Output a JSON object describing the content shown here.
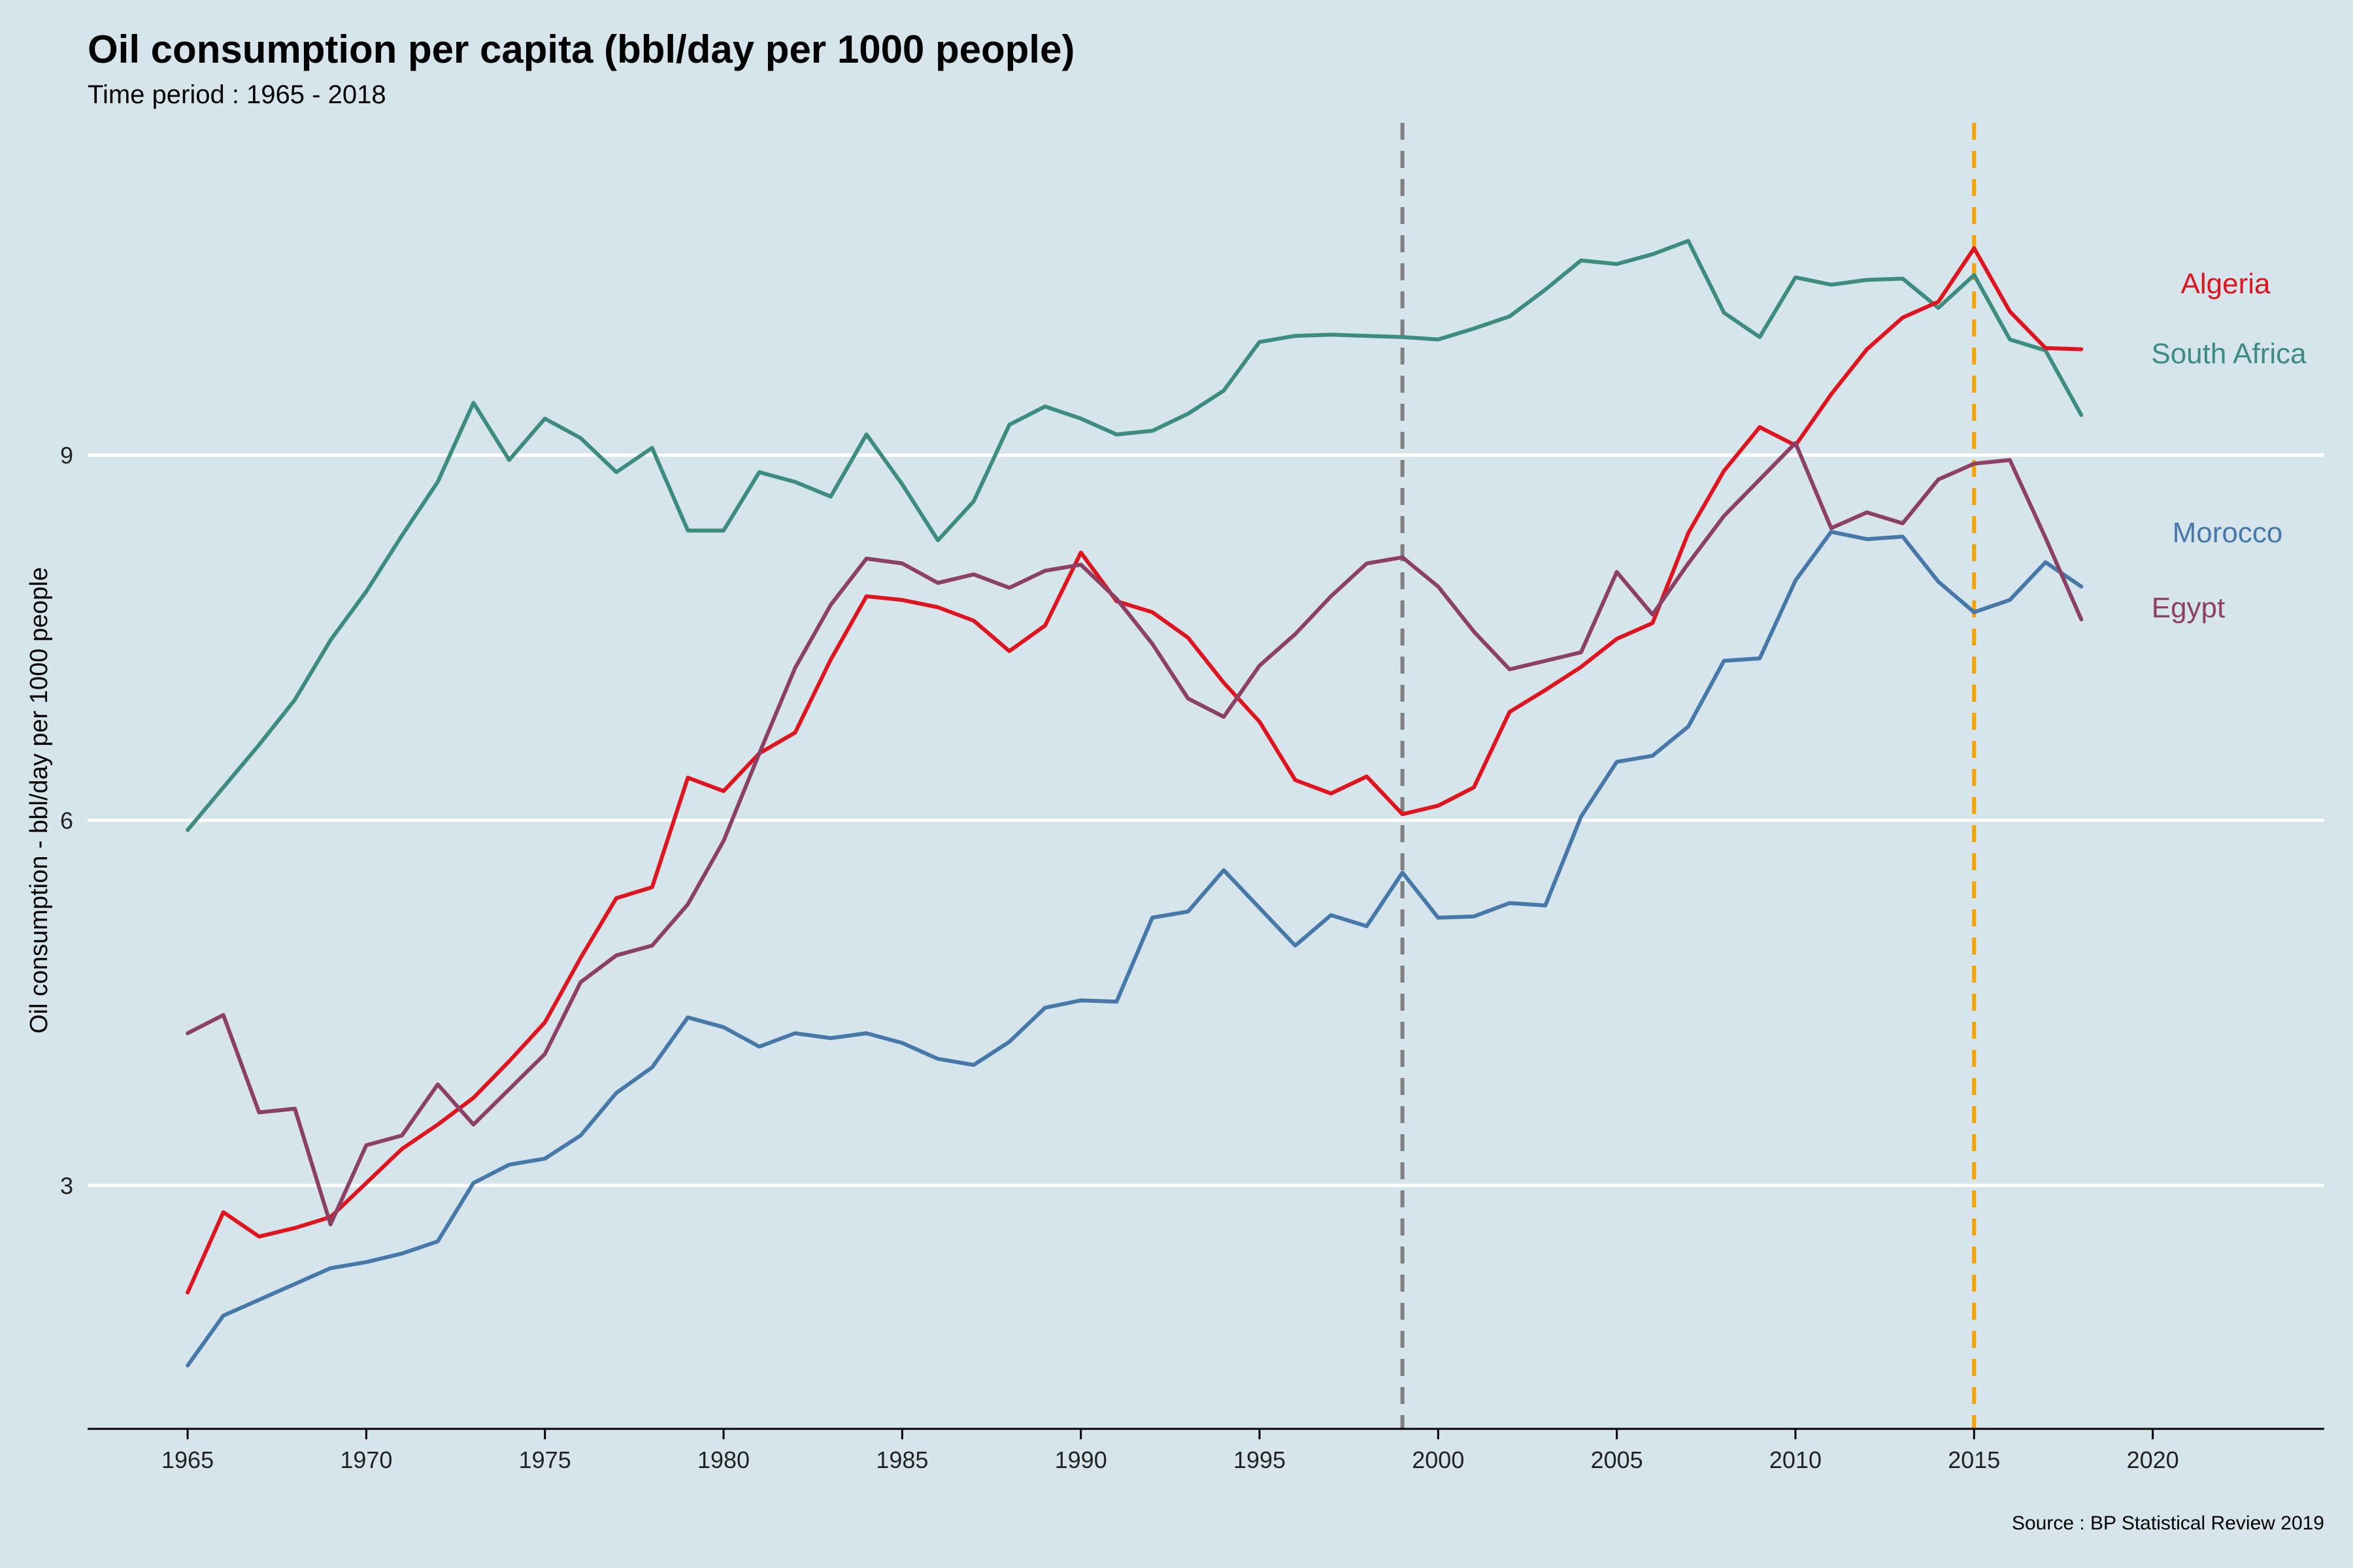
{
  "chart_data": {
    "type": "line",
    "title": "Oil consumption per capita (bbl/day per 1000 people)",
    "subtitle": "Time period : 1965 - 2018",
    "ylabel": "Oil consumption - bbl/day per 1000 people",
    "xlabel": "",
    "caption": "Source : BP Statistical Review 2019",
    "xlim": [
      1962.2,
      2024.8
    ],
    "ylim": [
      1.0,
      11.8
    ],
    "x_ticks": [
      1965,
      1970,
      1975,
      1980,
      1985,
      1990,
      1995,
      2000,
      2005,
      2010,
      2015,
      2020
    ],
    "y_ticks": [
      3,
      6,
      9
    ],
    "grid": "horizontal major lines only",
    "legend": "direct labels at right",
    "reference_lines": [
      {
        "x": 1999,
        "color": "#808080",
        "style": "dashed"
      },
      {
        "x": 2015,
        "color": "#f5a300",
        "style": "dashed"
      }
    ],
    "x": [
      1965,
      1966,
      1967,
      1968,
      1969,
      1970,
      1971,
      1972,
      1973,
      1974,
      1975,
      1976,
      1977,
      1978,
      1979,
      1980,
      1981,
      1982,
      1983,
      1984,
      1985,
      1986,
      1987,
      1988,
      1989,
      1990,
      1991,
      1992,
      1993,
      1994,
      1995,
      1996,
      1997,
      1998,
      1999,
      2000,
      2001,
      2002,
      2003,
      2004,
      2005,
      2006,
      2007,
      2008,
      2009,
      2010,
      2011,
      2012,
      2013,
      2014,
      2015,
      2016,
      2017,
      2018
    ],
    "series": [
      {
        "name": "South Africa",
        "color": "#3c8c80",
        "values": [
          5.92,
          6.27,
          6.62,
          6.99,
          7.48,
          7.88,
          8.34,
          8.78,
          9.43,
          8.96,
          9.3,
          9.14,
          8.86,
          9.06,
          8.38,
          8.38,
          8.86,
          8.78,
          8.66,
          9.17,
          8.76,
          8.3,
          8.62,
          9.25,
          9.4,
          9.3,
          9.17,
          9.2,
          9.34,
          9.53,
          9.93,
          9.98,
          9.99,
          9.98,
          9.97,
          9.95,
          10.04,
          10.14,
          10.36,
          10.6,
          10.57,
          10.65,
          10.76,
          10.17,
          9.97,
          10.46,
          10.4,
          10.44,
          10.45,
          10.21,
          10.48,
          9.95,
          9.86,
          9.33
        ]
      },
      {
        "name": "Algeria",
        "color": "#e0141e",
        "values": [
          2.12,
          2.78,
          2.58,
          2.65,
          2.74,
          3.02,
          3.3,
          3.5,
          3.72,
          4.02,
          4.34,
          4.87,
          5.36,
          5.45,
          6.35,
          6.24,
          6.55,
          6.72,
          7.32,
          7.84,
          7.81,
          7.75,
          7.64,
          7.39,
          7.6,
          8.2,
          7.8,
          7.71,
          7.5,
          7.13,
          6.81,
          6.33,
          6.22,
          6.36,
          6.05,
          6.12,
          6.27,
          6.89,
          7.07,
          7.26,
          7.49,
          7.62,
          8.36,
          8.87,
          9.23,
          9.08,
          9.5,
          9.87,
          10.13,
          10.26,
          10.7,
          10.18,
          9.88,
          9.87
        ]
      },
      {
        "name": "Morocco",
        "color": "#4678aa",
        "values": [
          1.52,
          1.93,
          2.06,
          2.19,
          2.32,
          2.37,
          2.44,
          2.54,
          3.02,
          3.17,
          3.22,
          3.41,
          3.76,
          3.97,
          4.38,
          4.3,
          4.14,
          4.25,
          4.21,
          4.25,
          4.17,
          4.04,
          3.99,
          4.18,
          4.46,
          4.52,
          4.51,
          5.2,
          5.25,
          5.59,
          5.28,
          4.97,
          5.22,
          5.13,
          5.57,
          5.2,
          5.21,
          5.32,
          5.3,
          6.03,
          6.48,
          6.53,
          6.77,
          7.31,
          7.33,
          7.97,
          8.37,
          8.31,
          8.33,
          7.96,
          7.71,
          7.81,
          8.12,
          7.92
        ]
      },
      {
        "name": "Egypt",
        "color": "#8c4164",
        "values": [
          4.25,
          4.4,
          3.6,
          3.63,
          2.68,
          3.33,
          3.41,
          3.83,
          3.5,
          3.79,
          4.08,
          4.67,
          4.89,
          4.97,
          5.31,
          5.83,
          6.55,
          7.25,
          7.77,
          8.15,
          8.11,
          7.95,
          8.02,
          7.91,
          8.05,
          8.1,
          7.82,
          7.45,
          7.0,
          6.85,
          7.27,
          7.53,
          7.84,
          8.11,
          8.16,
          7.92,
          7.55,
          7.24,
          7.31,
          7.38,
          8.04,
          7.69,
          8.11,
          8.5,
          8.8,
          9.1,
          8.4,
          8.53,
          8.44,
          8.8,
          8.93,
          8.96,
          8.32,
          7.65
        ]
      }
    ],
    "series_labels": [
      {
        "name": "Algeria",
        "color": "#e0141e"
      },
      {
        "name": "South Africa",
        "color": "#3c8c80"
      },
      {
        "name": "Morocco",
        "color": "#4678aa"
      },
      {
        "name": "Egypt",
        "color": "#8c4164"
      }
    ]
  }
}
